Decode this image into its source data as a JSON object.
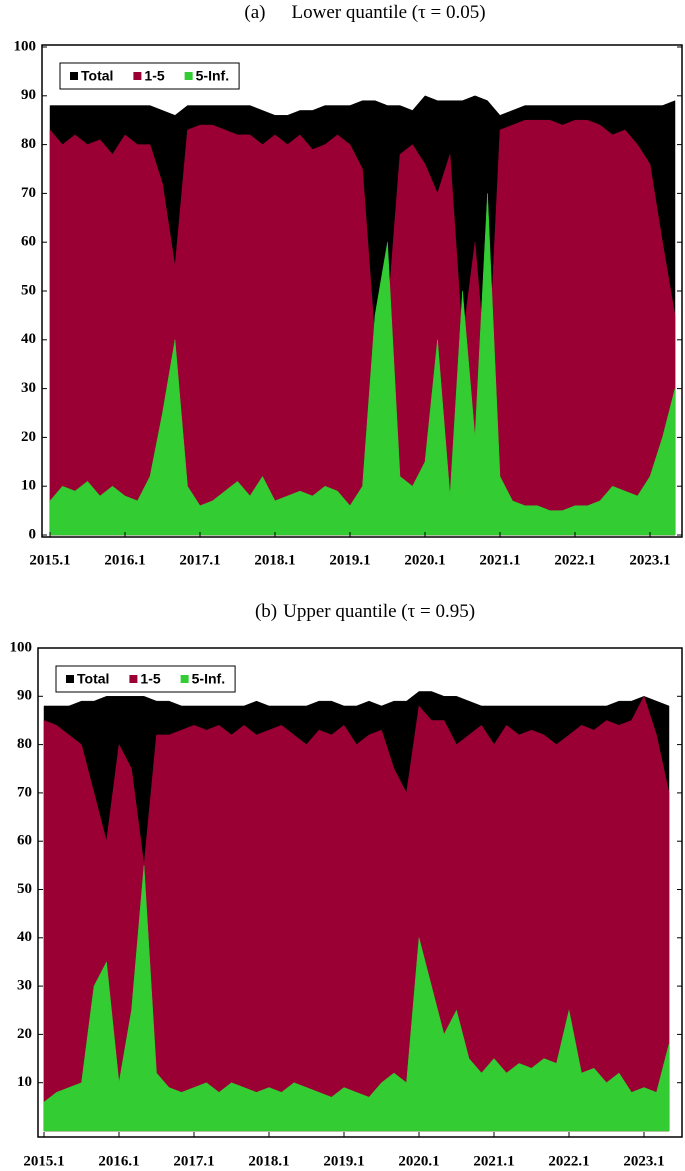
{
  "chart_data": [
    {
      "type": "area",
      "panel": "(a)",
      "title": "Lower quantile (τ = 0.05)",
      "x": [
        "2015.1",
        "2015.3",
        "2015.5",
        "2015.7",
        "2015.9",
        "2015.11",
        "2016.1",
        "2016.3",
        "2016.5",
        "2016.7",
        "2016.9",
        "2016.11",
        "2017.1",
        "2017.3",
        "2017.5",
        "2017.7",
        "2017.9",
        "2017.11",
        "2018.1",
        "2018.3",
        "2018.5",
        "2018.7",
        "2018.9",
        "2018.11",
        "2019.1",
        "2019.3",
        "2019.5",
        "2019.7",
        "2019.9",
        "2019.11",
        "2020.1",
        "2020.3",
        "2020.5",
        "2020.7",
        "2020.9",
        "2020.11",
        "2021.1",
        "2021.3",
        "2021.5",
        "2021.7",
        "2021.9",
        "2021.11",
        "2022.1",
        "2022.3",
        "2022.5",
        "2022.7",
        "2022.9",
        "2022.11",
        "2023.1",
        "2023.3",
        "2023.5"
      ],
      "xticks": [
        "2015.1",
        "2016.1",
        "2017.1",
        "2018.1",
        "2019.1",
        "2020.1",
        "2021.1",
        "2022.1",
        "2023.1"
      ],
      "ylim": [
        0,
        100
      ],
      "yticks": [
        0,
        10,
        20,
        30,
        40,
        50,
        60,
        70,
        80,
        90,
        100
      ],
      "legend": "upper left",
      "series": [
        {
          "name": "Total",
          "color": "#000000",
          "values": [
            88,
            88,
            88,
            88,
            88,
            88,
            88,
            88,
            88,
            87,
            86,
            88,
            88,
            88,
            88,
            88,
            88,
            87,
            86,
            86,
            87,
            87,
            88,
            88,
            88,
            89,
            89,
            88,
            88,
            87,
            90,
            89,
            89,
            89,
            90,
            89,
            86,
            87,
            88,
            88,
            88,
            88,
            88,
            88,
            88,
            88,
            88,
            88,
            88,
            88,
            89
          ]
        },
        {
          "name": "1-5",
          "color": "#9b0034",
          "values": [
            83,
            80,
            82,
            80,
            81,
            78,
            82,
            80,
            80,
            72,
            55,
            83,
            84,
            84,
            83,
            82,
            82,
            80,
            82,
            80,
            82,
            79,
            80,
            82,
            80,
            75,
            40,
            45,
            78,
            80,
            76,
            70,
            78,
            40,
            60,
            30,
            83,
            84,
            85,
            85,
            85,
            84,
            85,
            85,
            84,
            82,
            83,
            80,
            76,
            60,
            45
          ]
        },
        {
          "name": "5-Inf.",
          "color": "#33cc33",
          "values": [
            7,
            10,
            9,
            11,
            8,
            10,
            8,
            7,
            12,
            25,
            40,
            10,
            6,
            7,
            9,
            11,
            8,
            12,
            7,
            8,
            9,
            8,
            10,
            9,
            6,
            10,
            45,
            60,
            12,
            10,
            15,
            40,
            8,
            50,
            20,
            70,
            12,
            7,
            6,
            6,
            5,
            5,
            6,
            6,
            7,
            10,
            9,
            8,
            12,
            20,
            30
          ]
        }
      ]
    },
    {
      "type": "area",
      "panel": "(b)",
      "title": "Upper quantile (τ = 0.95)",
      "x": [
        "2015.1",
        "2015.3",
        "2015.5",
        "2015.7",
        "2015.9",
        "2015.11",
        "2016.1",
        "2016.3",
        "2016.5",
        "2016.7",
        "2016.9",
        "2016.11",
        "2017.1",
        "2017.3",
        "2017.5",
        "2017.7",
        "2017.9",
        "2017.11",
        "2018.1",
        "2018.3",
        "2018.5",
        "2018.7",
        "2018.9",
        "2018.11",
        "2019.1",
        "2019.3",
        "2019.5",
        "2019.7",
        "2019.9",
        "2019.11",
        "2020.1",
        "2020.3",
        "2020.5",
        "2020.7",
        "2020.9",
        "2020.11",
        "2021.1",
        "2021.3",
        "2021.5",
        "2021.7",
        "2021.9",
        "2021.11",
        "2022.1",
        "2022.3",
        "2022.5",
        "2022.7",
        "2022.9",
        "2022.11",
        "2023.1",
        "2023.3",
        "2023.5"
      ],
      "xticks": [
        "2015.1",
        "2016.1",
        "2017.1",
        "2018.1",
        "2019.1",
        "2020.1",
        "2021.1",
        "2022.1",
        "2023.1"
      ],
      "ylim": [
        0,
        100
      ],
      "yticks": [
        10,
        20,
        30,
        40,
        50,
        60,
        70,
        80,
        90,
        100
      ],
      "legend": "upper left",
      "series": [
        {
          "name": "Total",
          "color": "#000000",
          "values": [
            88,
            88,
            88,
            89,
            89,
            90,
            90,
            90,
            90,
            89,
            89,
            88,
            88,
            88,
            88,
            88,
            88,
            89,
            88,
            88,
            88,
            88,
            89,
            89,
            88,
            88,
            89,
            88,
            89,
            89,
            91,
            91,
            90,
            90,
            89,
            88,
            88,
            88,
            88,
            88,
            88,
            88,
            88,
            88,
            88,
            88,
            89,
            89,
            90,
            89,
            88
          ]
        },
        {
          "name": "1-5",
          "color": "#9b0034",
          "values": [
            85,
            84,
            82,
            80,
            70,
            60,
            80,
            75,
            55,
            82,
            82,
            83,
            84,
            83,
            84,
            82,
            84,
            82,
            83,
            84,
            82,
            80,
            83,
            82,
            84,
            80,
            82,
            83,
            75,
            70,
            88,
            85,
            85,
            80,
            82,
            84,
            80,
            84,
            82,
            83,
            82,
            80,
            82,
            84,
            83,
            85,
            84,
            85,
            90,
            82,
            70
          ]
        },
        {
          "name": "5-Inf.",
          "color": "#33cc33",
          "values": [
            6,
            8,
            9,
            10,
            30,
            35,
            10,
            25,
            55,
            12,
            9,
            8,
            9,
            10,
            8,
            10,
            9,
            8,
            9,
            8,
            10,
            9,
            8,
            7,
            9,
            8,
            7,
            10,
            12,
            10,
            40,
            30,
            20,
            25,
            15,
            12,
            15,
            12,
            14,
            13,
            15,
            14,
            25,
            12,
            13,
            10,
            12,
            8,
            9,
            8,
            18
          ]
        }
      ]
    }
  ]
}
